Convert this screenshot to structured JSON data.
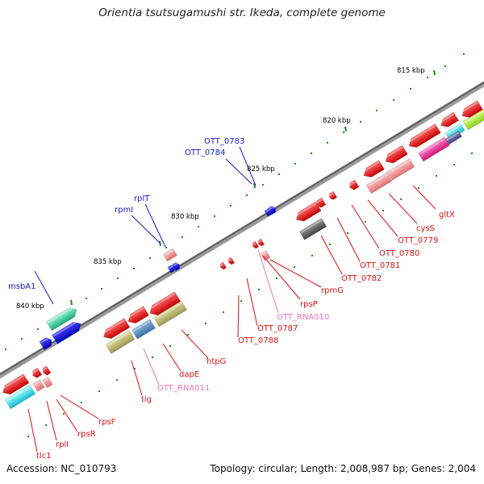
{
  "title": "Orientia tsutsugamushi str. Ikeda, complete genome",
  "footer": {
    "accession": "Accession: NC_010793",
    "topology": "Topology: circular; Length: 2,008,987 bp; Genes: 2,004"
  },
  "colors": {
    "forward_label": "#1a1acc",
    "reverse_label": "#dd1111",
    "rna_label": "#ee77bb",
    "backbone": "#7a7a7a",
    "tick": "#1f8a1f"
  },
  "kbp_labels": [
    "815 kbp",
    "820 kbp",
    "825 kbp",
    "830 kbp",
    "835 kbp",
    "840 kbp"
  ],
  "genes": [
    {
      "label": "OTT_0783",
      "strand": "forward"
    },
    {
      "label": "OTT_0784",
      "strand": "forward"
    },
    {
      "label": "rplT",
      "strand": "forward"
    },
    {
      "label": "rpmI",
      "strand": "forward"
    },
    {
      "label": "msbA1",
      "strand": "forward"
    },
    {
      "label": "gltX",
      "strand": "reverse"
    },
    {
      "label": "cysS",
      "strand": "reverse"
    },
    {
      "label": "OTT_0779",
      "strand": "reverse"
    },
    {
      "label": "OTT_0780",
      "strand": "reverse"
    },
    {
      "label": "OTT_0781",
      "strand": "reverse"
    },
    {
      "label": "OTT_0782",
      "strand": "reverse"
    },
    {
      "label": "rpmG",
      "strand": "reverse"
    },
    {
      "label": "rpsP",
      "strand": "reverse"
    },
    {
      "label": "OTT_RNA010",
      "strand": "rna"
    },
    {
      "label": "OTT_0787",
      "strand": "reverse"
    },
    {
      "label": "OTT_0788",
      "strand": "reverse"
    },
    {
      "label": "htpG",
      "strand": "reverse"
    },
    {
      "label": "dapE",
      "strand": "reverse"
    },
    {
      "label": "OTT_RNA011",
      "strand": "rna"
    },
    {
      "label": "tig",
      "strand": "reverse"
    },
    {
      "label": "rpsF",
      "strand": "reverse"
    },
    {
      "label": "rpsR",
      "strand": "reverse"
    },
    {
      "label": "rplI",
      "strand": "reverse"
    },
    {
      "label": "tlc1",
      "strand": "reverse"
    }
  ]
}
